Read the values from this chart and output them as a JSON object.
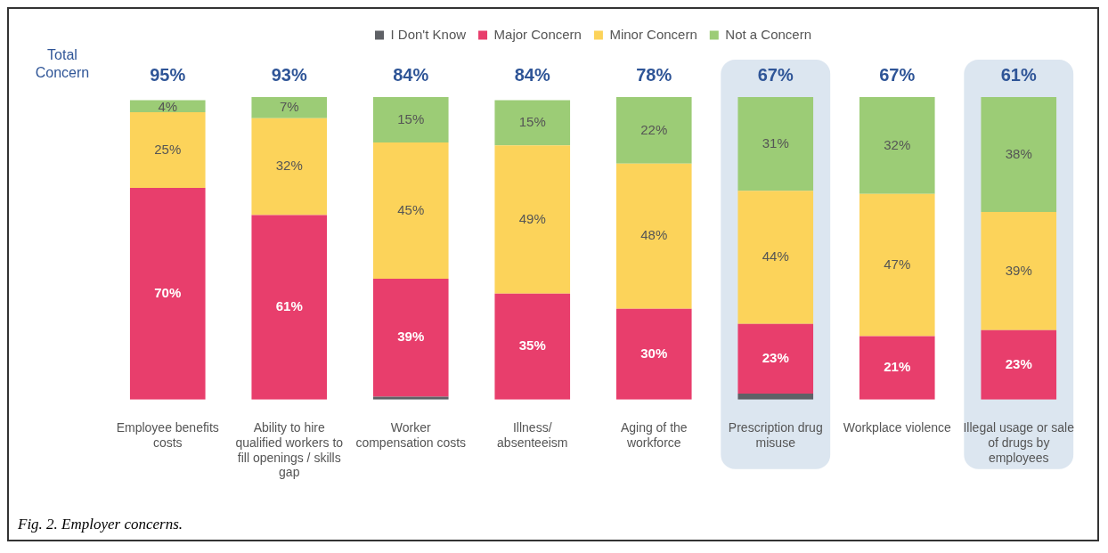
{
  "chart_data": {
    "type": "bar",
    "stacked": true,
    "categories": [
      "Employee benefits costs",
      "Ability to hire qualified workers to fill openings / skills gap",
      "Worker compensation costs",
      "Illness/ absenteeism",
      "Aging of the workforce",
      "Prescription drug misuse",
      "Workplace violence",
      "Illegal usage or sale of drugs by employees"
    ],
    "series": [
      {
        "name": "I Don't Know",
        "color": "#5f6166",
        "values": [
          0,
          0,
          1,
          0,
          0,
          2,
          0,
          0
        ],
        "value_labels": [
          null,
          null,
          null,
          null,
          null,
          null,
          null,
          null
        ]
      },
      {
        "name": "Major Concern",
        "color": "#e83e6c",
        "values": [
          70,
          61,
          39,
          35,
          30,
          23,
          21,
          23
        ],
        "value_labels": [
          "70%",
          "61%",
          "39%",
          "35%",
          "30%",
          "23%",
          "21%",
          "23%"
        ]
      },
      {
        "name": "Minor Concern",
        "color": "#fcd35a",
        "values": [
          25,
          32,
          45,
          49,
          48,
          44,
          47,
          39
        ],
        "value_labels": [
          "25%",
          "32%",
          "45%",
          "49%",
          "48%",
          "44%",
          "47%",
          "39%"
        ]
      },
      {
        "name": "Not a Concern",
        "color": "#9ccc76",
        "values": [
          4,
          7,
          15,
          15,
          22,
          31,
          32,
          38
        ],
        "value_labels": [
          "4%",
          "7%",
          "15%",
          "15%",
          "22%",
          "31%",
          "32%",
          "38%"
        ]
      }
    ],
    "ylim": [
      0,
      100
    ],
    "tick_labels": "x",
    "grid": false,
    "legend": "top",
    "bands": [
      {
        "axis": "x",
        "from": "Prescription drug misuse",
        "to": "Prescription drug misuse",
        "color": "#dce6f0"
      },
      {
        "axis": "x",
        "from": "Illegal usage or sale of drugs by employees",
        "to": "Illegal usage or sale of drugs by employees",
        "color": "#dce6f0"
      }
    ],
    "annotations": [
      "Total Concern",
      "95%",
      "93%",
      "84%",
      "84%",
      "78%",
      "67%",
      "67%",
      "61%",
      "Fig. 2. Employer concerns."
    ]
  }
}
